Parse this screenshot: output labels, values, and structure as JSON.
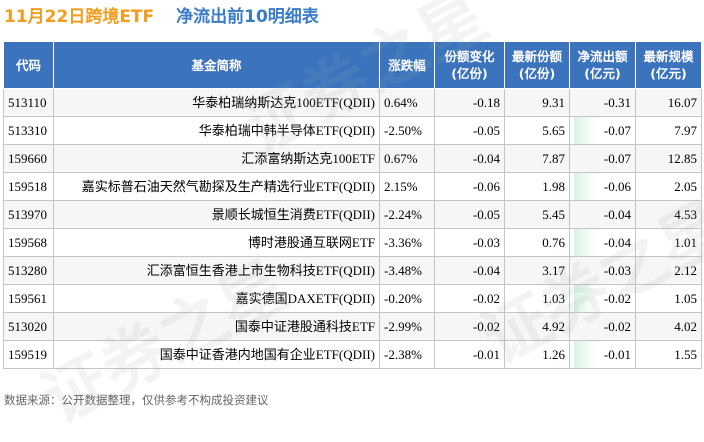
{
  "title": {
    "date_label": "11月22日跨境ETF",
    "subtitle": "净流出前10明细表"
  },
  "table": {
    "headers": {
      "code": "代码",
      "name": "基金简称",
      "change": "涨跌幅",
      "share_change": [
        "份额变化",
        "(亿份)"
      ],
      "latest_shares": [
        "最新份额",
        "(亿份)"
      ],
      "net_outflow": [
        "净流出额",
        "(亿元)"
      ],
      "latest_size": [
        "最新规模",
        "(亿元)"
      ]
    },
    "rows": [
      {
        "code": "513110",
        "name": "华泰柏瑞纳斯达克100ETF(QDII)",
        "change": "0.64%",
        "change_dir": "up",
        "share_change": "-0.18",
        "latest_shares": "9.31",
        "net_outflow": "-0.31",
        "latest_size": "16.07"
      },
      {
        "code": "513310",
        "name": "华泰柏瑞中韩半导体ETF(QDII)",
        "change": "-2.50%",
        "change_dir": "down",
        "share_change": "-0.05",
        "latest_shares": "5.65",
        "net_outflow": "-0.07",
        "latest_size": "7.97"
      },
      {
        "code": "159660",
        "name": "汇添富纳斯达克100ETF",
        "change": "0.67%",
        "change_dir": "up",
        "share_change": "-0.04",
        "latest_shares": "7.87",
        "net_outflow": "-0.07",
        "latest_size": "12.85"
      },
      {
        "code": "159518",
        "name": "嘉实标普石油天然气勘探及生产精选行业ETF(QDII)",
        "change": "2.15%",
        "change_dir": "up",
        "share_change": "-0.06",
        "latest_shares": "1.98",
        "net_outflow": "-0.06",
        "latest_size": "2.05"
      },
      {
        "code": "513970",
        "name": "景顺长城恒生消费ETF(QDII)",
        "change": "-2.24%",
        "change_dir": "down",
        "share_change": "-0.05",
        "latest_shares": "5.45",
        "net_outflow": "-0.04",
        "latest_size": "4.53"
      },
      {
        "code": "159568",
        "name": "博时港股通互联网ETF",
        "change": "-3.36%",
        "change_dir": "down",
        "share_change": "-0.03",
        "latest_shares": "0.76",
        "net_outflow": "-0.04",
        "latest_size": "1.01"
      },
      {
        "code": "513280",
        "name": "汇添富恒生香港上市生物科技ETF(QDII)",
        "change": "-3.48%",
        "change_dir": "down",
        "share_change": "-0.04",
        "latest_shares": "3.17",
        "net_outflow": "-0.03",
        "latest_size": "2.12"
      },
      {
        "code": "159561",
        "name": "嘉实德国DAXETF(QDII)",
        "change": "-0.20%",
        "change_dir": "down",
        "share_change": "-0.02",
        "latest_shares": "1.03",
        "net_outflow": "-0.02",
        "latest_size": "1.05"
      },
      {
        "code": "513020",
        "name": "国泰中证港股通科技ETF",
        "change": "-2.99%",
        "change_dir": "down",
        "share_change": "-0.02",
        "latest_shares": "4.92",
        "net_outflow": "-0.02",
        "latest_size": "4.02"
      },
      {
        "code": "159519",
        "name": "国泰中证香港内地国有企业ETF(QDII)",
        "change": "-2.38%",
        "change_dir": "down",
        "share_change": "-0.01",
        "latest_shares": "1.26",
        "net_outflow": "-0.01",
        "latest_size": "1.55"
      }
    ]
  },
  "footer": {
    "source": "数据来源：公开数据整理，仅供参考不构成投资建议"
  },
  "colors": {
    "header_bg": "#3b74bd",
    "up": "#e0201c",
    "down": "#1d8e3a",
    "title_orange": "#f29c1f",
    "title_blue": "#3a7cc8"
  }
}
